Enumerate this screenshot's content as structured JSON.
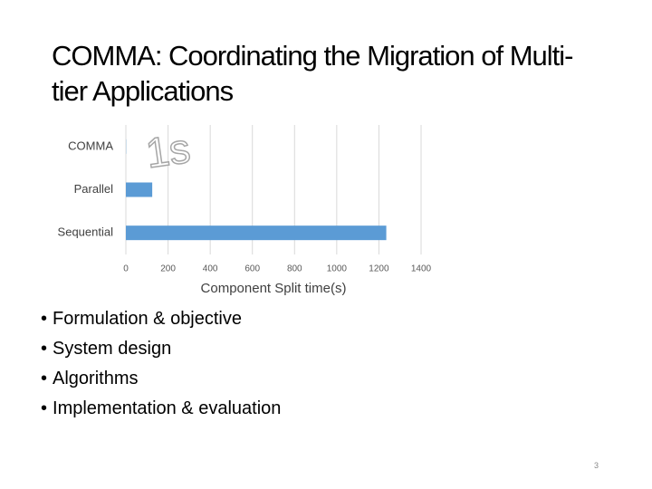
{
  "slide": {
    "title": "COMMA: Coordinating the Migration of Multi-tier Applications",
    "bullets": [
      "Formulation & objective",
      "System design",
      "Algorithms",
      "Implementation & evaluation"
    ],
    "page_number": "3"
  },
  "chart_data": {
    "type": "hbar",
    "categories": [
      "COMMA",
      "Parallel",
      "Sequential"
    ],
    "values": [
      1,
      125,
      1235
    ],
    "color": "#5b9bd5",
    "xlim": [
      0,
      1400
    ],
    "xticks": [
      0,
      200,
      400,
      600,
      800,
      1000,
      1200,
      1400
    ],
    "xlabel": "Component Split time(s)",
    "annotation": "1s",
    "grid": true
  }
}
